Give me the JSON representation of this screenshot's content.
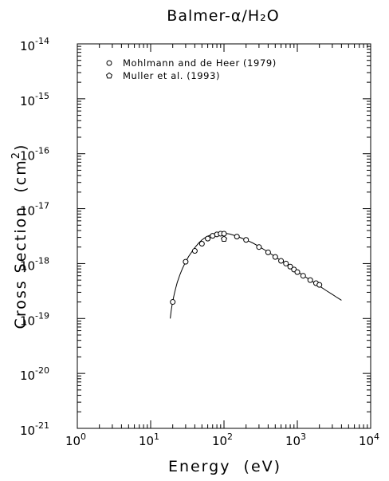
{
  "chart_data": {
    "type": "scatter",
    "title": "Balmer-α/H₂O",
    "xlabel": "Energy  (eV)",
    "ylabel": "Cross Section  (cm²)",
    "x_scale": "log",
    "y_scale": "log",
    "xlim": [
      1,
      10000
    ],
    "ylim": [
      1e-21,
      1e-14
    ],
    "x_ticks": [
      {
        "value": 1,
        "base": "10",
        "exp": "0"
      },
      {
        "value": 10,
        "base": "10",
        "exp": "1"
      },
      {
        "value": 100,
        "base": "10",
        "exp": "2"
      },
      {
        "value": 1000,
        "base": "10",
        "exp": "3"
      },
      {
        "value": 10000,
        "base": "10",
        "exp": "4"
      }
    ],
    "y_ticks": [
      {
        "value": 1e-14,
        "base": "10",
        "exp": "-14"
      },
      {
        "value": 1e-15,
        "base": "10",
        "exp": "-15"
      },
      {
        "value": 1e-16,
        "base": "10",
        "exp": "-16"
      },
      {
        "value": 1e-17,
        "base": "10",
        "exp": "-17"
      },
      {
        "value": 1e-18,
        "base": "10",
        "exp": "-18"
      },
      {
        "value": 1e-19,
        "base": "10",
        "exp": "-19"
      },
      {
        "value": 1e-20,
        "base": "10",
        "exp": "-20"
      },
      {
        "value": 1e-21,
        "base": "10",
        "exp": "-21"
      }
    ],
    "legend_position": "top-left",
    "series": [
      {
        "name": "Mohlmann and de Heer (1979)",
        "marker": "circle",
        "x": [
          20,
          30,
          40,
          50,
          60,
          70,
          80,
          90,
          100,
          150,
          200,
          300,
          400,
          500,
          600,
          700,
          800,
          900,
          1000,
          1200,
          1500,
          1800,
          2000
        ],
        "y": [
          2e-19,
          1.08e-18,
          1.7e-18,
          2.3e-18,
          2.85e-18,
          3.2e-18,
          3.4e-18,
          3.5e-18,
          3.5e-18,
          3.1e-18,
          2.7e-18,
          2e-18,
          1.6e-18,
          1.32e-18,
          1.12e-18,
          1e-18,
          8.8e-19,
          7.8e-19,
          7e-19,
          6e-19,
          5e-19,
          4.4e-19,
          4.1e-19
        ]
      },
      {
        "name": "Muller et al. (1993)",
        "marker": "pentagon",
        "x": [
          100
        ],
        "y": [
          2.8e-18
        ]
      }
    ],
    "fit_curve": {
      "x": [
        18.5,
        19,
        19.5,
        20,
        21,
        22,
        23,
        25,
        27,
        30,
        33,
        36,
        40,
        45,
        50,
        55,
        60,
        70,
        80,
        90,
        100,
        120,
        150,
        200,
        250,
        300,
        400,
        500,
        600,
        700,
        800,
        1000,
        1200,
        1500,
        2000,
        2500,
        3000,
        3500,
        4000
      ],
      "y": [
        1e-19,
        1.35e-19,
        1.7e-19,
        2.05e-19,
        2.8e-19,
        3.6e-19,
        4.5e-19,
        6.2e-19,
        8e-19,
        1.08e-18,
        1.35e-18,
        1.6e-18,
        1.95e-18,
        2.35e-18,
        2.7e-18,
        2.95e-18,
        3.15e-18,
        3.42e-18,
        3.55e-18,
        3.6e-18,
        3.58e-18,
        3.45e-18,
        3.15e-18,
        2.7e-18,
        2.35e-18,
        2.05e-18,
        1.62e-18,
        1.33e-18,
        1.13e-18,
        9.9e-19,
        8.8e-19,
        7.2e-19,
        6.1e-19,
        5e-19,
        3.9e-19,
        3.2e-19,
        2.75e-19,
        2.4e-19,
        2.15e-19
      ]
    }
  }
}
